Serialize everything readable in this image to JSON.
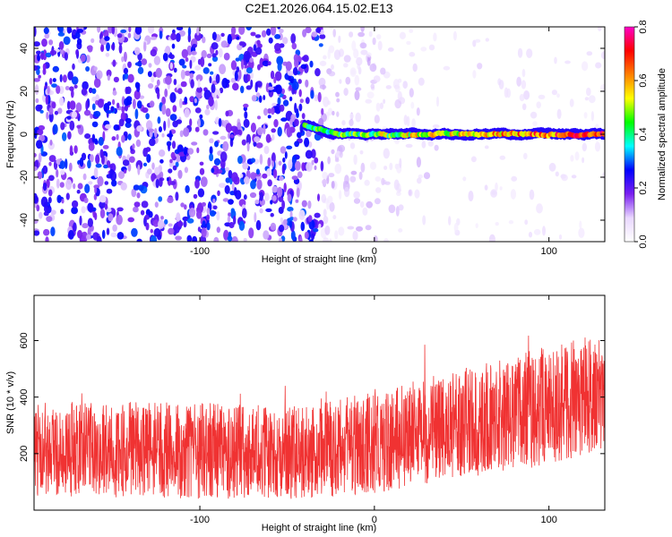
{
  "title": "C2E1.2026.064.15.02.E13",
  "chart_data": [
    {
      "type": "heatmap",
      "xlabel": "Height of straight line (km)",
      "ylabel": "Frequency (Hz)",
      "xlim": [
        -195,
        132
      ],
      "ylim": [
        -50,
        50
      ],
      "xticks": [
        -100,
        0,
        100
      ],
      "yticks": [
        -40,
        -20,
        0,
        20,
        40
      ],
      "colorbar": {
        "label": "Normalized spectral amplitude",
        "range": [
          0,
          0.8
        ],
        "ticks": [
          0.0,
          0.2,
          0.4,
          0.6,
          0.8
        ],
        "colors": [
          "#ffffff",
          "#e9d7ff",
          "#7a1ff0",
          "#0000ff",
          "#00ffff",
          "#00ff00",
          "#ffff00",
          "#ff8000",
          "#ff0000",
          "#ff00c8"
        ]
      },
      "track": {
        "x_start": -40,
        "x_end": 132,
        "frequency": 0,
        "peak_amplitude": 0.8
      }
    },
    {
      "type": "line",
      "xlabel": "Height of straight line (km)",
      "ylabel": "SNR (10 * v/v)",
      "xlim": [
        -195,
        132
      ],
      "ylim": [
        0,
        760
      ],
      "xticks": [
        -100,
        0,
        100
      ],
      "yticks": [
        200,
        400,
        600
      ],
      "color": "#f03232",
      "trend": [
        {
          "x": -195,
          "low": 50,
          "high": 390
        },
        {
          "x": -100,
          "low": 40,
          "high": 380
        },
        {
          "x": -40,
          "low": 40,
          "high": 370
        },
        {
          "x": 0,
          "low": 60,
          "high": 420
        },
        {
          "x": 50,
          "low": 110,
          "high": 510
        },
        {
          "x": 100,
          "low": 160,
          "high": 580
        },
        {
          "x": 132,
          "low": 220,
          "high": 620
        }
      ]
    }
  ]
}
